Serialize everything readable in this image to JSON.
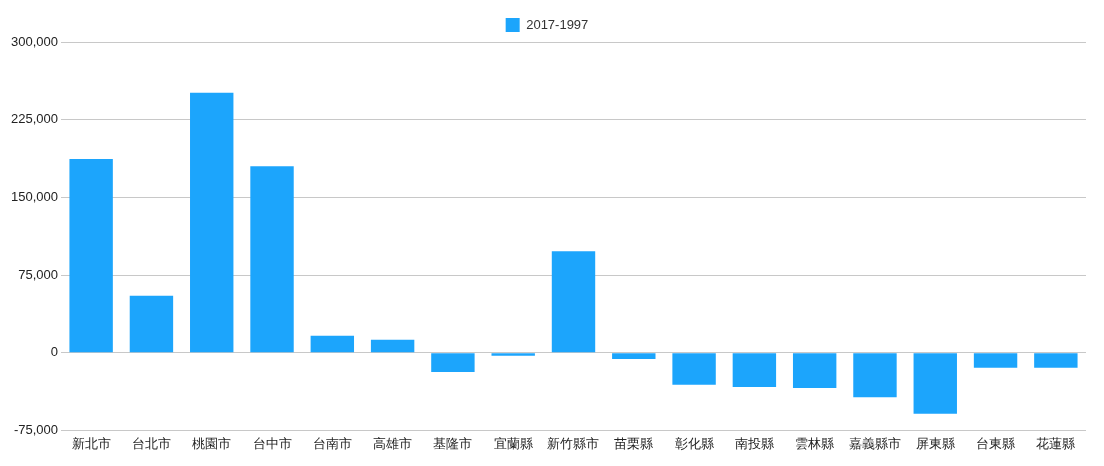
{
  "chart_data": {
    "type": "bar",
    "categories": [
      "新北市",
      "台北市",
      "桃園市",
      "台中市",
      "台南市",
      "高雄市",
      "基隆市",
      "宜蘭縣",
      "新竹縣市",
      "苗栗縣",
      "彰化縣",
      "南投縣",
      "雲林縣",
      "嘉義縣市",
      "屏東縣",
      "台東縣",
      "花蓮縣"
    ],
    "series": [
      {
        "name": "2017-1997",
        "color": "#1ca5fc",
        "values": [
          187000,
          55000,
          251000,
          180000,
          16500,
          12500,
          -18500,
          -3000,
          98000,
          -6000,
          -31000,
          -33000,
          -34000,
          -43000,
          -59000,
          -14500,
          -14500
        ]
      }
    ],
    "ylim": [
      -75000,
      300000
    ],
    "yticks": [
      {
        "value": -75000,
        "label": "-75,000"
      },
      {
        "value": 0,
        "label": "0"
      },
      {
        "value": 75000,
        "label": "75,000"
      },
      {
        "value": 150000,
        "label": "150,000"
      },
      {
        "value": 225000,
        "label": "225,000"
      },
      {
        "value": 300000,
        "label": "300,000"
      }
    ],
    "grid": "y",
    "legend": "top"
  }
}
